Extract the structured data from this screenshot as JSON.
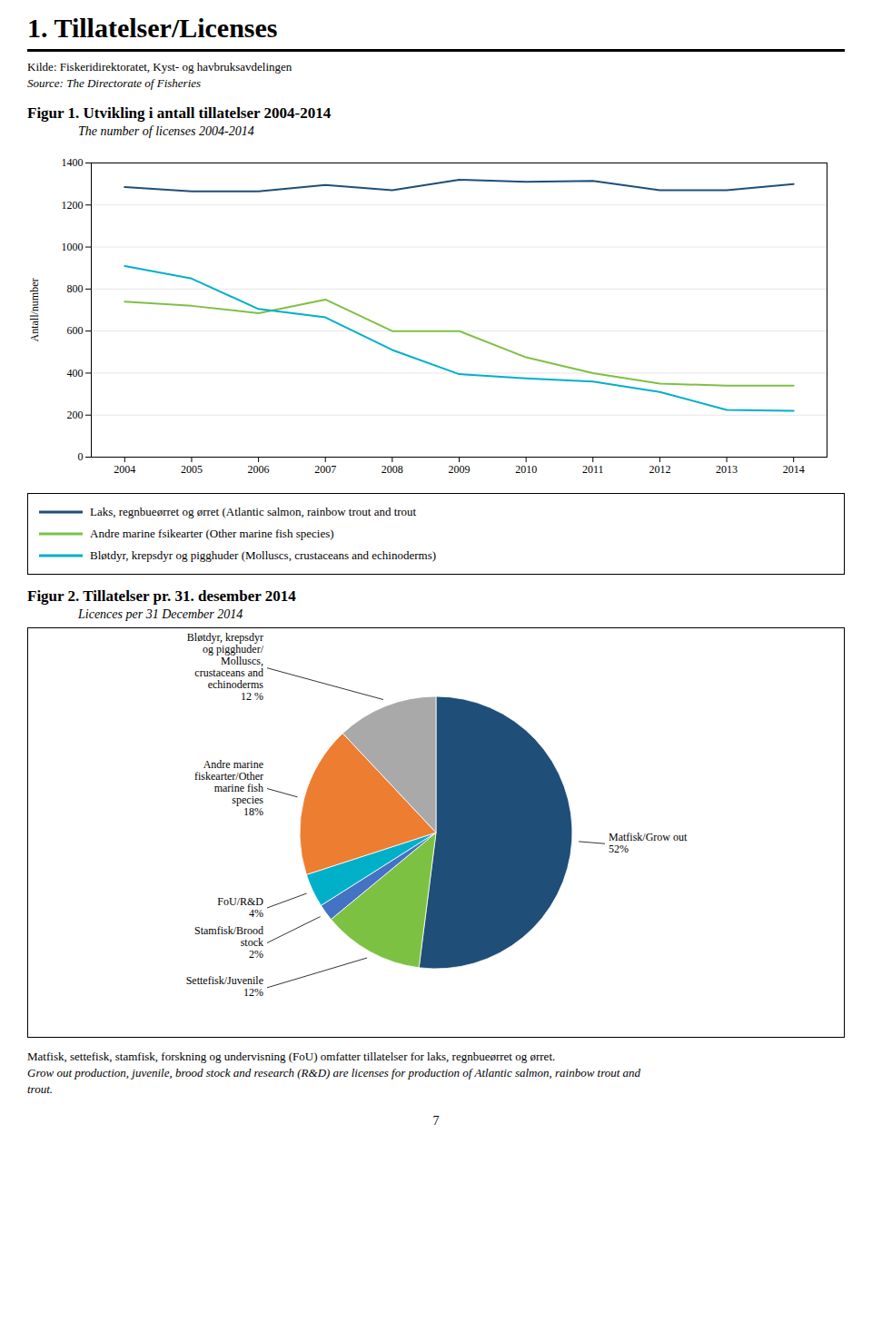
{
  "title": "1. Tillatelser/Licenses",
  "source": [
    "Kilde: Fiskeridirektoratet, Kyst- og havbruksavdelingen",
    "Source: The Directorate of Fisheries"
  ],
  "chart_data": [
    {
      "type": "line",
      "title": "Figur 1.  Utvikling i antall tillatelser 2004-2014",
      "subtitle": "The number of licenses 2004-2014",
      "y_label": "Antall/number",
      "x": [
        2004,
        2005,
        2006,
        2007,
        2008,
        2009,
        2010,
        2011,
        2012,
        2013,
        2014
      ],
      "series": [
        {
          "name": "Laks, regnbueørret og ørret (Atlantic salmon, rainbow trout and trout",
          "color": "#1F4E79",
          "values": [
            1285,
            1265,
            1265,
            1295,
            1270,
            1320,
            1310,
            1315,
            1270,
            1270,
            1300
          ]
        },
        {
          "name": "Andre marine fsikearter (Other marine fish species)",
          "color": "#7DC142",
          "values": [
            740,
            720,
            685,
            750,
            600,
            600,
            475,
            400,
            350,
            340,
            340
          ]
        },
        {
          "name": "Bløtdyr, krepsdyr og pigghuder (Molluscs, crustaceans and echinoderms)",
          "color": "#00B0C8",
          "values": [
            910,
            850,
            705,
            665,
            510,
            395,
            375,
            360,
            310,
            225,
            220
          ]
        }
      ],
      "xlim": [
        2003.5,
        2014.5
      ],
      "xticks": [
        2004,
        2005,
        2006,
        2007,
        2008,
        2009,
        2010,
        2011,
        2012,
        2013,
        2014
      ],
      "ylim": [
        0,
        1400
      ],
      "yticks": [
        0,
        200,
        400,
        600,
        800,
        1000,
        1200,
        1400
      ],
      "grid": "y",
      "legend": "bottom"
    },
    {
      "type": "pie",
      "title": "Figur 2.  Tillatelser pr. 31. desember 2014",
      "subtitle": "Licences per 31 December 2014",
      "categories": [
        "Matfisk/Grow out",
        "Settefisk/Juvenile",
        "Stamfisk/Brood\nstock",
        "FoU/R&D",
        "Andre marine\nfiskearter/Other\nmarine fish\nspecies",
        "Bløtdyr, krepsdyr\nog pigghuder/\nMolluscs,\ncrustaceans and\nechinoderms"
      ],
      "values": [
        52,
        12,
        2,
        4,
        18,
        12
      ],
      "value_labels": [
        "52%",
        "12%",
        "2%",
        "4%",
        "18%",
        "12 %"
      ],
      "colors": [
        "#1F4E79",
        "#7DC142",
        "#4472C4",
        "#00B0C8",
        "#ED7D31",
        "#A9A9A9"
      ],
      "data_labels": true
    }
  ],
  "footer": [
    "Matfisk, settefisk, stamfisk, forskning og undervisning (FoU) omfatter tillatelser for laks, regnbueørret og ørret.",
    "Grow out production, juvenile, brood stock and research (R&D) are licenses for production of Atlantic salmon, rainbow trout and",
    "trout."
  ],
  "page_number": "7"
}
